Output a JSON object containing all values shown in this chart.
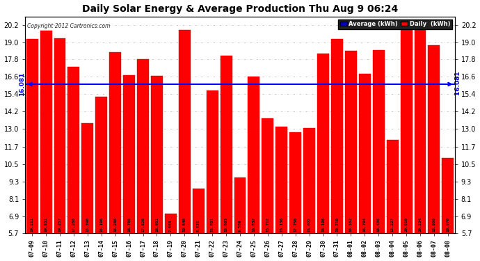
{
  "title": "Daily Solar Energy & Average Production Thu Aug 9 06:24",
  "copyright": "Copyright 2012 Cartronics.com",
  "average": 16.081,
  "categories": [
    "07-09",
    "07-10",
    "07-11",
    "07-12",
    "07-13",
    "07-14",
    "07-15",
    "07-16",
    "07-17",
    "07-18",
    "07-19",
    "07-20",
    "07-21",
    "07-22",
    "07-23",
    "07-24",
    "07-25",
    "07-26",
    "07-27",
    "07-28",
    "07-29",
    "07-30",
    "07-31",
    "08-01",
    "08-02",
    "08-03",
    "08-04",
    "08-05",
    "08-06",
    "08-07",
    "08-08"
  ],
  "values": [
    19.211,
    19.831,
    19.257,
    17.288,
    13.39,
    15.196,
    18.286,
    16.708,
    17.826,
    16.651,
    7.063,
    19.84,
    8.831,
    15.651,
    18.063,
    9.569,
    16.632,
    13.712,
    13.136,
    12.75,
    13.022,
    18.196,
    19.21,
    18.382,
    16.794,
    18.436,
    12.227,
    20.019,
    20.234,
    18.808,
    10.97
  ],
  "bar_color": "#ff0000",
  "avg_line_color": "#0000ff",
  "background_color": "#ffffff",
  "grid_color": "#999999",
  "ylim_min": 5.7,
  "ylim_max": 20.8,
  "yticks": [
    5.7,
    6.9,
    8.1,
    9.3,
    10.5,
    11.7,
    13.0,
    14.2,
    15.4,
    16.6,
    17.8,
    19.0,
    20.2
  ],
  "legend_avg_text": "Average (kWh)",
  "legend_daily_text": "Daily  (kWh)"
}
